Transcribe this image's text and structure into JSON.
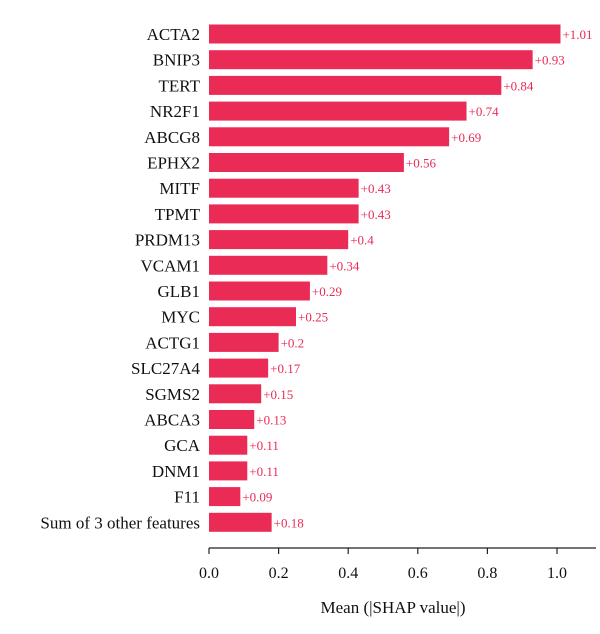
{
  "chart_data": {
    "type": "bar",
    "orientation": "horizontal",
    "categories": [
      "ACTA2",
      "BNIP3",
      "TERT",
      "NR2F1",
      "ABCG8",
      "EPHX2",
      "MITF",
      "TPMT",
      "PRDM13",
      "VCAM1",
      "GLB1",
      "MYC",
      "ACTG1",
      "SLC27A4",
      "SGMS2",
      "ABCA3",
      "GCA",
      "DNM1",
      "F11",
      "Sum of 3 other features"
    ],
    "values": [
      1.01,
      0.93,
      0.84,
      0.74,
      0.69,
      0.56,
      0.43,
      0.43,
      0.4,
      0.34,
      0.29,
      0.25,
      0.2,
      0.17,
      0.15,
      0.13,
      0.11,
      0.11,
      0.09,
      0.18
    ],
    "value_labels": [
      "+1.01",
      "+0.93",
      "+0.84",
      "+0.74",
      "+0.69",
      "+0.56",
      "+0.43",
      "+0.43",
      "+0.4",
      "+0.34",
      "+0.29",
      "+0.25",
      "+0.2",
      "+0.17",
      "+0.15",
      "+0.13",
      "+0.11",
      "+0.11",
      "+0.09",
      "+0.18"
    ],
    "xlabel": "Mean (|SHAP value|)",
    "ylabel": "",
    "xlim": [
      0,
      1.11
    ],
    "xticks": [
      0.0,
      0.2,
      0.4,
      0.6,
      0.8,
      1.0
    ],
    "xtick_labels": [
      "0.0",
      "0.2",
      "0.4",
      "0.6",
      "0.8",
      "1.0"
    ],
    "grid": false,
    "colors": {
      "bar": "#ea2b56",
      "label": "#ea2b56",
      "axis": "#222222"
    }
  }
}
